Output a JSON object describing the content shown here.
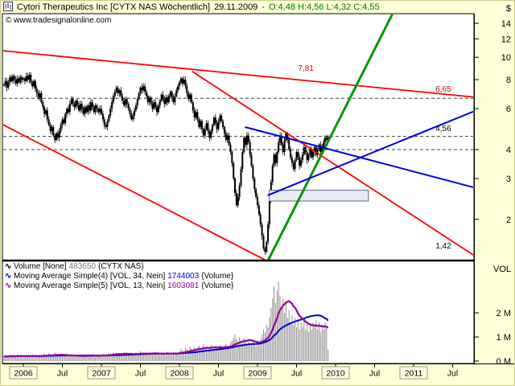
{
  "header": {
    "instrument": "Cytori Therapeutics Inc [CYTX NAS  Wöchentlich]",
    "date": "29.11.2009",
    "separator": "-",
    "ohlc": "O:4,48 H:4,56 L:4,32 C:4,55"
  },
  "watermark": "© www.tradesignalonline.com",
  "legend": {
    "volume": {
      "icon": "∿",
      "label": "Volume [None]",
      "value": "483650",
      "suffix": "{CYTX NAS}",
      "color": "#000000",
      "value_color": "#7a7a7a"
    },
    "ma34": {
      "icon": "∿",
      "label": "Moving Average Simple(4) [VOL, 34, Nein]",
      "value": "1744003",
      "suffix": "{Volume}",
      "color": "#0000cc",
      "value_color": "#0000cc"
    },
    "ma13": {
      "icon": "∿",
      "label": "Moving Average Simple(5) [VOL, 13, Nein]",
      "value": "1603081",
      "suffix": "{Volume}",
      "color": "#990099",
      "value_color": "#990099"
    }
  },
  "colors": {
    "background": "#ffffd8",
    "panel": "#ffffff",
    "ohlc_text": "#007700",
    "trend_red": "#ff0000",
    "trend_green": "#009900",
    "trend_blue": "#0000dd",
    "ma_blue": "#0000cc",
    "ma_purple": "#990099",
    "volume_bar": "#8f8f8f",
    "label_red": "#cc0000"
  },
  "axes": {
    "price": {
      "title": "$",
      "ticks": [
        {
          "label": "14",
          "value": 14
        },
        {
          "label": "12",
          "value": 12
        },
        {
          "label": "10",
          "value": 10
        },
        {
          "label": "8",
          "value": 8
        },
        {
          "label": "6",
          "value": 6
        },
        {
          "label": "4",
          "value": 4
        },
        {
          "label": "3",
          "value": 3
        },
        {
          "label": "2",
          "value": 2
        }
      ]
    },
    "volume": {
      "title": "VOL",
      "ticks": [
        {
          "label": "2 M",
          "value": 2
        },
        {
          "label": "1 M",
          "value": 1
        },
        {
          "label": "0 M",
          "value": 0
        }
      ]
    },
    "time": {
      "labels": [
        {
          "text": "2006",
          "t": 2006.0,
          "boxed": true
        },
        {
          "text": "Jul",
          "t": 2006.5,
          "boxed": false
        },
        {
          "text": "2007",
          "t": 2007.0,
          "boxed": true
        },
        {
          "text": "Jul",
          "t": 2007.5,
          "boxed": false
        },
        {
          "text": "2008",
          "t": 2008.0,
          "boxed": true
        },
        {
          "text": "Jul",
          "t": 2008.5,
          "boxed": false
        },
        {
          "text": "2009",
          "t": 2009.0,
          "boxed": true
        },
        {
          "text": "Jul",
          "t": 2009.5,
          "boxed": false
        },
        {
          "text": "2010",
          "t": 2010.0,
          "boxed": true
        },
        {
          "text": "Jul",
          "t": 2010.5,
          "boxed": false
        },
        {
          "text": "2011",
          "t": 2011.0,
          "boxed": true
        },
        {
          "text": "Jul",
          "t": 2011.5,
          "boxed": false
        }
      ]
    }
  },
  "chart_data": {
    "type": "candlestick+volume",
    "symbol": "CYTX NAS",
    "timeframe": "weekly",
    "price_scale": "log",
    "start_year": 2005.75,
    "week_step": 0.0192308,
    "current_bar": {
      "open": 4.48,
      "high": 4.56,
      "low": 4.32,
      "close": 4.55
    },
    "closes": [
      7.6,
      7.9,
      7.4,
      7.8,
      8.2,
      7.9,
      8.3,
      8.0,
      7.7,
      8.1,
      7.8,
      8.2,
      8.0,
      8.1,
      7.9,
      8.3,
      8.0,
      8.4,
      7.8,
      7.5,
      7.9,
      7.3,
      7.0,
      6.7,
      7.0,
      6.4,
      6.1,
      5.7,
      5.9,
      5.4,
      5.1,
      4.8,
      5.0,
      4.6,
      4.4,
      4.7,
      4.5,
      4.8,
      5.1,
      5.4,
      5.2,
      5.7,
      6.0,
      5.8,
      6.3,
      6.6,
      6.3,
      6.1,
      6.5,
      6.2,
      5.9,
      6.3,
      6.0,
      5.7,
      6.1,
      5.8,
      6.2,
      5.9,
      6.4,
      6.1,
      5.8,
      6.2,
      6.0,
      5.8,
      6.0,
      5.7,
      5.4,
      5.1,
      5.0,
      5.3,
      5.6,
      6.0,
      6.4,
      6.8,
      7.1,
      7.4,
      7.0,
      7.2,
      6.8,
      6.5,
      6.2,
      6.6,
      6.3,
      6.0,
      5.7,
      5.4,
      5.6,
      5.9,
      6.2,
      6.6,
      7.0,
      7.4,
      7.2,
      7.5,
      7.1,
      6.8,
      6.4,
      6.7,
      6.3,
      6.0,
      6.4,
      6.1,
      5.8,
      6.2,
      6.5,
      6.9,
      6.6,
      6.3,
      6.7,
      6.4,
      6.8,
      7.1,
      6.7,
      6.4,
      6.8,
      7.2,
      7.5,
      7.8,
      8.1,
      7.7,
      8.0,
      7.5,
      7.0,
      6.6,
      6.9,
      6.4,
      5.9,
      5.5,
      5.8,
      5.4,
      5.0,
      5.3,
      4.9,
      4.6,
      4.9,
      5.2,
      4.8,
      4.5,
      4.8,
      5.1,
      5.5,
      5.2,
      4.9,
      5.3,
      5.6,
      5.3,
      5.0,
      4.7,
      4.4,
      4.6,
      4.2,
      3.9,
      3.5,
      3.0,
      2.6,
      2.3,
      2.5,
      2.8,
      3.3,
      3.9,
      4.5,
      4.2,
      4.6,
      4.3,
      3.8,
      3.4,
      3.0,
      2.7,
      2.5,
      2.3,
      2.1,
      1.9,
      1.7,
      1.5,
      1.45,
      1.6,
      1.9,
      2.4,
      2.9,
      3.4,
      3.8,
      3.5,
      3.9,
      4.3,
      4.6,
      4.2,
      3.9,
      4.4,
      4.7,
      4.4,
      4.0,
      3.7,
      3.5,
      3.3,
      3.6,
      3.9,
      3.7,
      3.4,
      3.6,
      3.8,
      4.1,
      3.9,
      3.6,
      3.8,
      4.0,
      3.7,
      3.9,
      4.1,
      3.8,
      4.0,
      4.2,
      3.9,
      4.1,
      4.3,
      4.5,
      4.4,
      4.55
    ],
    "volumes_millions": [
      0.18,
      0.22,
      0.16,
      0.2,
      0.25,
      0.19,
      0.23,
      0.17,
      0.21,
      0.26,
      0.2,
      0.24,
      0.19,
      0.15,
      0.22,
      0.18,
      0.25,
      0.2,
      0.16,
      0.28,
      0.19,
      0.23,
      0.17,
      0.21,
      0.26,
      0.18,
      0.24,
      0.3,
      0.22,
      0.27,
      0.33,
      0.25,
      0.2,
      0.28,
      0.35,
      0.24,
      0.19,
      0.26,
      0.31,
      0.22,
      0.18,
      0.25,
      0.21,
      0.17,
      0.23,
      0.28,
      0.2,
      0.16,
      0.22,
      0.26,
      0.19,
      0.24,
      0.18,
      0.22,
      0.27,
      0.2,
      0.25,
      0.18,
      0.23,
      0.28,
      0.21,
      0.17,
      0.24,
      0.2,
      0.26,
      0.24,
      0.3,
      0.26,
      0.21,
      0.28,
      0.34,
      0.25,
      0.31,
      0.38,
      0.29,
      0.35,
      0.27,
      0.32,
      0.24,
      0.29,
      0.36,
      0.26,
      0.31,
      0.23,
      0.28,
      0.33,
      0.25,
      0.3,
      0.37,
      0.28,
      0.34,
      0.41,
      0.3,
      0.36,
      0.27,
      0.32,
      0.24,
      0.29,
      0.35,
      0.26,
      0.31,
      0.38,
      0.28,
      0.33,
      0.25,
      0.3,
      0.36,
      0.27,
      0.32,
      0.39,
      0.29,
      0.34,
      0.26,
      0.31,
      0.37,
      0.28,
      0.33,
      0.4,
      0.52,
      0.45,
      0.38,
      0.55,
      0.48,
      0.42,
      0.6,
      0.5,
      0.44,
      0.58,
      0.47,
      0.53,
      0.65,
      0.49,
      0.56,
      0.7,
      0.54,
      0.61,
      0.46,
      0.52,
      0.68,
      0.57,
      0.5,
      0.63,
      0.55,
      0.48,
      0.66,
      0.58,
      0.51,
      0.64,
      0.72,
      0.6,
      0.55,
      0.78,
      0.85,
      0.95,
      1.1,
      0.9,
      0.8,
      1.0,
      0.85,
      0.75,
      0.95,
      0.8,
      0.7,
      0.9,
      0.75,
      0.65,
      0.85,
      0.7,
      0.6,
      0.8,
      0.7,
      0.9,
      1.1,
      1.3,
      1.2,
      1.5,
      1.4,
      1.8,
      2.2,
      2.6,
      3.1,
      2.4,
      2.9,
      3.3,
      2.7,
      2.2,
      2.6,
      2.0,
      2.4,
      1.8,
      2.1,
      1.6,
      1.9,
      1.5,
      1.8,
      1.4,
      1.7,
      1.3,
      1.6,
      1.4,
      1.7,
      1.3,
      1.6,
      1.2,
      1.5,
      1.3,
      1.6,
      1.4,
      1.7,
      1.3,
      1.6,
      1.2,
      1.5,
      1.3,
      1.6,
      1.4,
      0.48
    ],
    "moving_averages": [
      {
        "name": "ma-34",
        "period": 34,
        "color": "#0000cc",
        "width": 2
      },
      {
        "name": "ma-13",
        "period": 13,
        "color": "#990099",
        "width": 2.2
      }
    ],
    "levels": [
      {
        "price": 6.65
      },
      {
        "price": 4.56
      },
      {
        "price": 4.0
      }
    ],
    "trendlines": [
      {
        "name": "upper-resistance",
        "color": "#ff0000",
        "width": 1.8,
        "points": [
          [
            2005.7,
            10.7
          ],
          [
            2011.8,
            6.72
          ]
        ]
      },
      {
        "name": "steep-downtrend",
        "color": "#ff0000",
        "width": 1.8,
        "points": [
          [
            2008.16,
            8.7
          ],
          [
            2011.8,
            1.38
          ]
        ]
      },
      {
        "name": "lower-support",
        "color": "#ff0000",
        "width": 1.8,
        "points": [
          [
            2005.7,
            5.2
          ],
          [
            2009.13,
            1.32
          ]
        ]
      },
      {
        "name": "green-uptrend",
        "color": "#009900",
        "width": 3,
        "points": [
          [
            2009.13,
            1.32
          ],
          [
            2010.85,
            18.5
          ]
        ]
      },
      {
        "name": "blue-downtrend",
        "color": "#0000dd",
        "width": 2,
        "points": [
          [
            2008.84,
            5.0
          ],
          [
            2011.8,
            2.73
          ]
        ]
      },
      {
        "name": "blue-uptrend",
        "color": "#0000dd",
        "width": 2,
        "points": [
          [
            2009.13,
            2.54
          ],
          [
            2011.8,
            5.9
          ]
        ]
      }
    ],
    "annotations": {
      "labels": [
        {
          "text": "7,81",
          "color": "#cc0000",
          "t": 2009.52,
          "price": 8.75
        },
        {
          "text": "6,65",
          "color": "#cc0000",
          "t": 2011.28,
          "price": 7.1
        },
        {
          "text": "4,56",
          "color": "#000000",
          "t": 2011.28,
          "price": 4.8
        },
        {
          "text": "1,42",
          "color": "#000000",
          "t": 2011.28,
          "price": 1.5
        }
      ],
      "box": {
        "t1": 2009.15,
        "t2": 2010.42,
        "p1": 2.4,
        "p2": 2.67
      }
    }
  }
}
